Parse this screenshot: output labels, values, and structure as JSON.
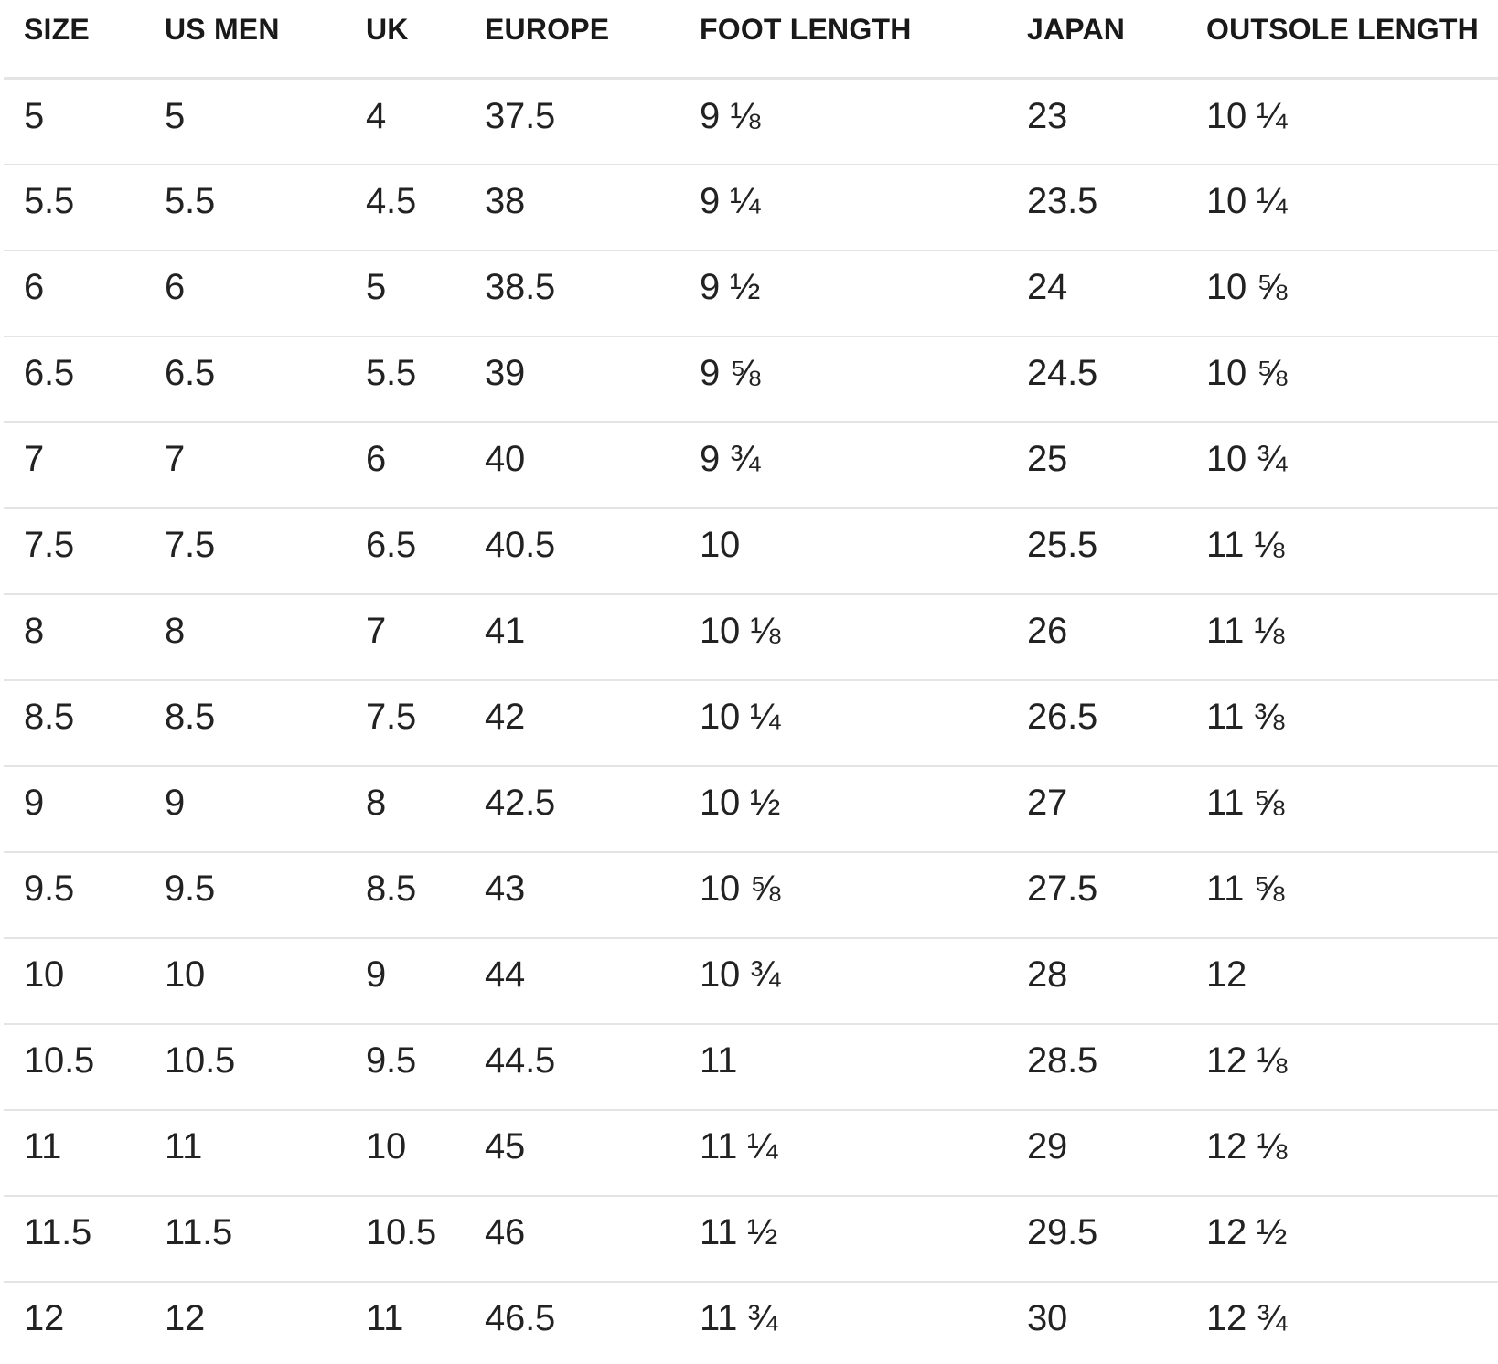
{
  "chart_data": {
    "type": "table",
    "columns": [
      {
        "key": "size",
        "label": "SIZE"
      },
      {
        "key": "us-men",
        "label": "US MEN"
      },
      {
        "key": "uk",
        "label": "UK"
      },
      {
        "key": "europe",
        "label": "EUROPE"
      },
      {
        "key": "foot-length",
        "label": "FOOT LENGTH"
      },
      {
        "key": "japan",
        "label": "JAPAN"
      },
      {
        "key": "outsole-length",
        "label": "OUTSOLE LENGTH"
      }
    ],
    "rows": [
      [
        "5",
        "5",
        "4",
        "37.5",
        "9 ⅛",
        "23",
        "10 ¼"
      ],
      [
        "5.5",
        "5.5",
        "4.5",
        "38",
        "9 ¼",
        "23.5",
        "10 ¼"
      ],
      [
        "6",
        "6",
        "5",
        "38.5",
        "9 ½",
        "24",
        "10 ⅝"
      ],
      [
        "6.5",
        "6.5",
        "5.5",
        "39",
        "9 ⅝",
        "24.5",
        "10 ⅝"
      ],
      [
        "7",
        "7",
        "6",
        "40",
        "9 ¾",
        "25",
        "10 ¾"
      ],
      [
        "7.5",
        "7.5",
        "6.5",
        "40.5",
        "10",
        "25.5",
        "11 ⅛"
      ],
      [
        "8",
        "8",
        "7",
        "41",
        "10 ⅛",
        "26",
        "11 ⅛"
      ],
      [
        "8.5",
        "8.5",
        "7.5",
        "42",
        "10 ¼",
        "26.5",
        "11 ⅜"
      ],
      [
        "9",
        "9",
        "8",
        "42.5",
        "10 ½",
        "27",
        "11 ⅝"
      ],
      [
        "9.5",
        "9.5",
        "8.5",
        "43",
        "10 ⅝",
        "27.5",
        "11 ⅝"
      ],
      [
        "10",
        "10",
        "9",
        "44",
        "10 ¾",
        "28",
        "12"
      ],
      [
        "10.5",
        "10.5",
        "9.5",
        "44.5",
        "11",
        "28.5",
        "12 ⅛"
      ],
      [
        "11",
        "11",
        "10",
        "45",
        "11 ¼",
        "29",
        "12 ⅛"
      ],
      [
        "11.5",
        "11.5",
        "10.5",
        "46",
        "11 ½",
        "29.5",
        "12 ½"
      ],
      [
        "12",
        "12",
        "11",
        "46.5",
        "11 ¾",
        "30",
        "12 ¾"
      ]
    ],
    "layout_hints": {
      "grid": "horizontal-row-separators-only",
      "header_position": "top",
      "text_alignment": "left"
    }
  },
  "colors": {
    "text": "#222222",
    "header_text": "#191919",
    "separator": "#e4e4e4",
    "background": "#ffffff"
  }
}
